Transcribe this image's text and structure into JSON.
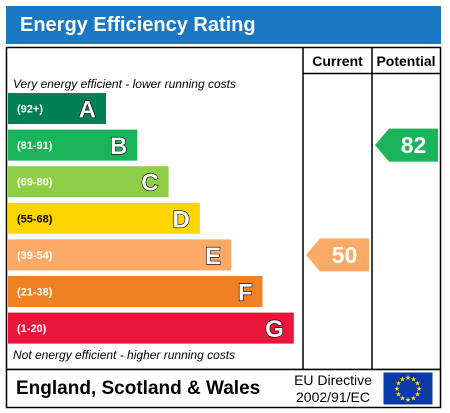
{
  "header": {
    "title": "Energy Efficiency Rating"
  },
  "columns": {
    "current_label": "Current",
    "potential_label": "Potential"
  },
  "notes": {
    "top": "Very energy efficient - lower running costs",
    "bottom": "Not energy efficient - higher running costs"
  },
  "footer": {
    "region": "England, Scotland & Wales",
    "directive_line1": "EU Directive",
    "directive_line2": "2002/91/EC",
    "flag_icon": "eu-flag-icon"
  },
  "chart_data": {
    "type": "bar",
    "categories": [
      "A",
      "B",
      "C",
      "D",
      "E",
      "F",
      "G"
    ],
    "ranges": [
      "(92+)",
      "(81-91)",
      "(69-80)",
      "(55-68)",
      "(39-54)",
      "(21-38)",
      "(1-20)"
    ],
    "band_mins": [
      92,
      81,
      69,
      55,
      39,
      21,
      1
    ],
    "band_maxs": [
      100,
      91,
      80,
      68,
      54,
      38,
      20
    ],
    "colors": [
      "#008054",
      "#19b459",
      "#8dce46",
      "#ffd500",
      "#fcaa65",
      "#ef8023",
      "#e9153b"
    ],
    "current": {
      "value": 50,
      "color": "#fcaa65"
    },
    "potential": {
      "value": 82,
      "color": "#19b459"
    }
  }
}
